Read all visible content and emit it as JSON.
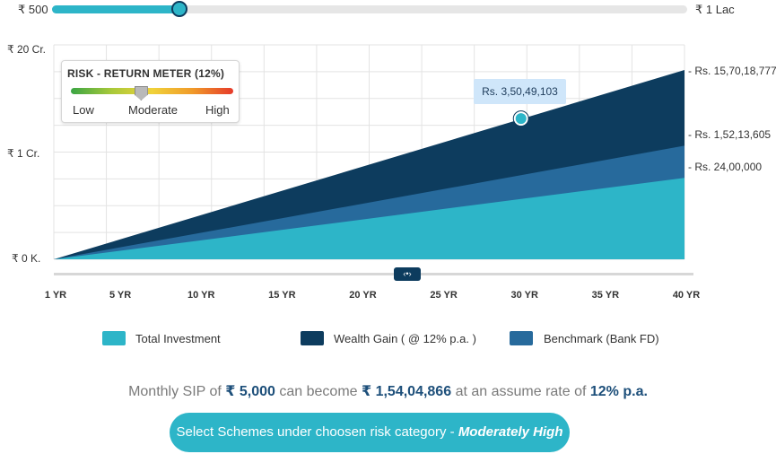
{
  "slider": {
    "min_label": "₹ 500",
    "max_label": "₹ 1 Lac",
    "value_fraction": 0.2
  },
  "risk_meter": {
    "title": "RISK - RETURN  METER (12%)",
    "low": "Low",
    "moderate": "Moderate",
    "high": "High",
    "level_fraction": 0.43
  },
  "tooltip": {
    "text": "Rs. 3,50,49,103"
  },
  "chart_data": {
    "type": "area",
    "categories": [
      "1 YR",
      "5 YR",
      "10 YR",
      "15 YR",
      "20 YR",
      "25 YR",
      "30 YR",
      "35 YR",
      "40 YR"
    ],
    "x_range": [
      1,
      40
    ],
    "y_tick_labels": [
      "₹ 20 Cr.",
      "₹ 1 Cr.",
      "₹ 0 K."
    ],
    "end_labels": [
      "- Rs. 15,70,18,777",
      "- Rs. 1,52,13,605",
      "- Rs. 24,00,000"
    ],
    "series": [
      {
        "name": "Wealth Gain ( @ 12% p.a. )",
        "color": "#0d3c5e",
        "end_level": 1.0
      },
      {
        "name": "Benchmark (Bank FD)",
        "color": "#276a9c",
        "end_level": 0.6
      },
      {
        "name": "Total Investment",
        "color": "#2db5c8",
        "end_level": 0.43
      }
    ],
    "highlight": {
      "x": 30,
      "series": "Wealth Gain ( @ 12% p.a. )"
    },
    "grid": true
  },
  "legend": {
    "total_investment": "Total Investment",
    "wealth_gain": "Wealth Gain ( @ 12% p.a. )",
    "benchmark": "Benchmark (Bank FD)"
  },
  "summary": {
    "prefix": "Monthly SIP of",
    "sip": "₹ 5,000",
    "middle": "can become",
    "result": "₹ 1,54,04,866",
    "suffix": "at an assume rate of",
    "rate": "12% p.a."
  },
  "cta": {
    "text": "Select Schemes under choosen risk category -",
    "category": "Moderately High"
  },
  "colors": {
    "accent": "#2db5c8",
    "dark": "#0d3c5e",
    "mid": "#276a9c"
  }
}
